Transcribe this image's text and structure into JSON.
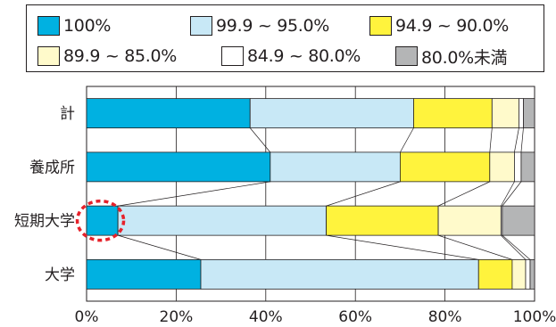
{
  "legend": [
    {
      "label": "100%",
      "color": "#00b1e1"
    },
    {
      "label": "99.9 ~ 95.0%",
      "color": "#c8e8f6"
    },
    {
      "label": "94.9 ~ 90.0%",
      "color": "#fff33d"
    },
    {
      "label": "89.9 ~ 85.0%",
      "color": "#fffacb"
    },
    {
      "label": "84.9 ~ 80.0%",
      "color": "#ffffff"
    },
    {
      "label": "80.0%未満",
      "color": "#b4b5b6"
    }
  ],
  "chart_data": {
    "type": "bar",
    "orientation": "horizontal",
    "stacked": true,
    "categories": [
      "計",
      "養成所",
      "短期大学",
      "大学"
    ],
    "series": [
      {
        "name": "100%",
        "color": "#00b1e1",
        "values": [
          36.5,
          41.0,
          7.0,
          25.5
        ]
      },
      {
        "name": "99.9 ~ 95.0%",
        "color": "#c8e8f6",
        "values": [
          36.5,
          29.0,
          46.5,
          62.0
        ]
      },
      {
        "name": "94.9 ~ 90.0%",
        "color": "#fff33d",
        "values": [
          17.5,
          20.0,
          25.0,
          7.5
        ]
      },
      {
        "name": "89.9 ~ 85.0%",
        "color": "#fffacb",
        "values": [
          6.0,
          5.5,
          14.0,
          3.0
        ]
      },
      {
        "name": "84.9 ~ 80.0%",
        "color": "#ffffff",
        "values": [
          1.0,
          1.5,
          0.3,
          1.0
        ]
      },
      {
        "name": "80.0%未満",
        "color": "#b4b5b6",
        "values": [
          2.5,
          3.0,
          7.2,
          1.0
        ]
      }
    ],
    "xticks": [
      "0%",
      "20%",
      "40%",
      "60%",
      "80%",
      "100%"
    ],
    "xlim": [
      0,
      100
    ],
    "grid": true,
    "legend_position": "top",
    "highlight": {
      "category": "短期大学",
      "series": "100%",
      "style": "red dashed circle"
    },
    "connector_lines": true
  }
}
